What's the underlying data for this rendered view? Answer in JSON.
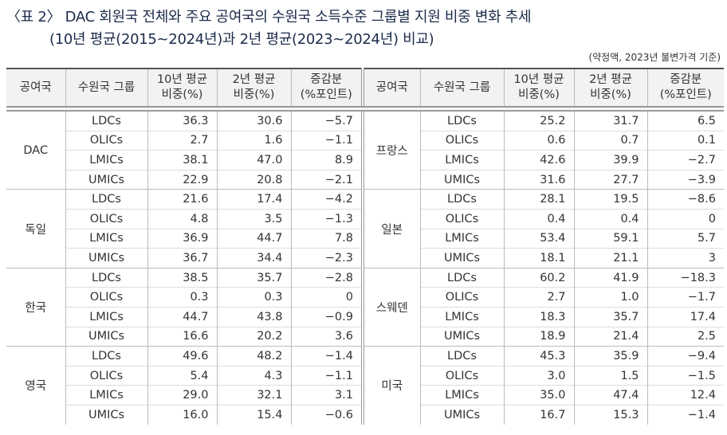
{
  "title": [
    "〈표 2〉 DAC 회원국 전체와 주요 공여국의 수원국 소득수준 그룹별 지원 비중 변화 추세",
    "(10년 평균(2015~2024년)과 2년 평균(2023~2024년) 비교)"
  ],
  "note": "(약정액, 2023년 불변가격 기준)",
  "table": {
    "header": [
      [
        "공여국"
      ],
      [
        "수원국 그룹"
      ],
      [
        "10년 평균",
        "비중(%)"
      ],
      [
        "2년 평균",
        "비중(%)"
      ],
      [
        "증감분",
        "(%포인트)"
      ]
    ],
    "left": [
      {
        "donor": "DAC",
        "rows": [
          [
            "LDCs",
            "36.3",
            "30.6",
            "−5.7"
          ],
          [
            "OLICs",
            "2.7",
            "1.6",
            "−1.1"
          ],
          [
            "LMICs",
            "38.1",
            "47.0",
            "8.9"
          ],
          [
            "UMICs",
            "22.9",
            "20.8",
            "−2.1"
          ]
        ]
      },
      {
        "donor": "독일",
        "rows": [
          [
            "LDCs",
            "21.6",
            "17.4",
            "−4.2"
          ],
          [
            "OLICs",
            "4.8",
            "3.5",
            "−1.3"
          ],
          [
            "LMICs",
            "36.9",
            "44.7",
            "7.8"
          ],
          [
            "UMICs",
            "36.7",
            "34.4",
            "−2.3"
          ]
        ]
      },
      {
        "donor": "한국",
        "rows": [
          [
            "LDCs",
            "38.5",
            "35.7",
            "−2.8"
          ],
          [
            "OLICs",
            "0.3",
            "0.3",
            "0"
          ],
          [
            "LMICs",
            "44.7",
            "43.8",
            "−0.9"
          ],
          [
            "UMICs",
            "16.6",
            "20.2",
            "3.6"
          ]
        ]
      },
      {
        "donor": "영국",
        "rows": [
          [
            "LDCs",
            "49.6",
            "48.2",
            "−1.4"
          ],
          [
            "OLICs",
            "5.4",
            "4.3",
            "−1.1"
          ],
          [
            "LMICs",
            "29.0",
            "32.1",
            "3.1"
          ],
          [
            "UMICs",
            "16.0",
            "15.4",
            "−0.6"
          ]
        ]
      }
    ],
    "right": [
      {
        "donor": "프랑스",
        "rows": [
          [
            "LDCs",
            "25.2",
            "31.7",
            "6.5"
          ],
          [
            "OLICs",
            "0.6",
            "0.7",
            "0.1"
          ],
          [
            "LMICs",
            "42.6",
            "39.9",
            "−2.7"
          ],
          [
            "UMICs",
            "31.6",
            "27.7",
            "−3.9"
          ]
        ]
      },
      {
        "donor": "일본",
        "rows": [
          [
            "LDCs",
            "28.1",
            "19.5",
            "−8.6"
          ],
          [
            "OLICs",
            "0.4",
            "0.4",
            "0"
          ],
          [
            "LMICs",
            "53.4",
            "59.1",
            "5.7"
          ],
          [
            "UMICs",
            "18.1",
            "21.1",
            "3"
          ]
        ]
      },
      {
        "donor": "스웨덴",
        "rows": [
          [
            "LDCs",
            "60.2",
            "41.9",
            "−18.3"
          ],
          [
            "OLICs",
            "2.7",
            "1.0",
            "−1.7"
          ],
          [
            "LMICs",
            "18.3",
            "35.7",
            "17.4"
          ],
          [
            "UMICs",
            "18.9",
            "21.4",
            "2.5"
          ]
        ]
      },
      {
        "donor": "미국",
        "rows": [
          [
            "LDCs",
            "45.3",
            "35.9",
            "−9.4"
          ],
          [
            "OLICs",
            "3.0",
            "1.5",
            "−1.5"
          ],
          [
            "LMICs",
            "35.0",
            "47.4",
            "12.4"
          ],
          [
            "UMICs",
            "16.7",
            "15.3",
            "−1.4"
          ]
        ]
      }
    ]
  }
}
